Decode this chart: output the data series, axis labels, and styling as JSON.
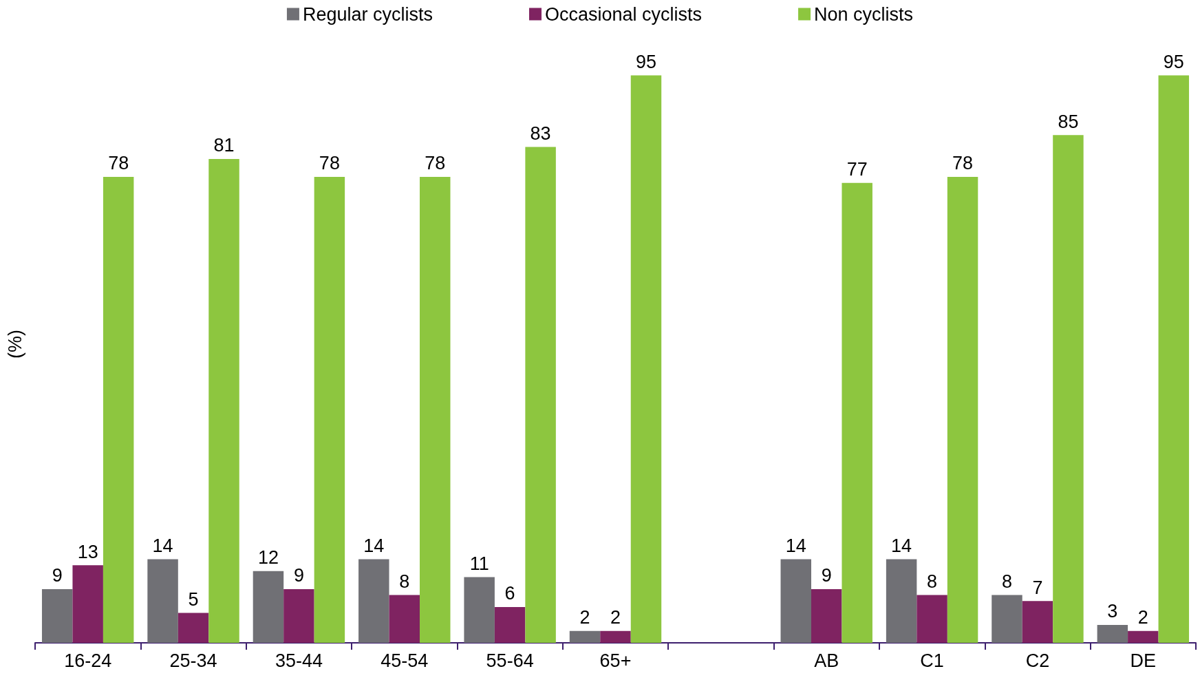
{
  "chart_data": {
    "type": "bar",
    "ylabel": "(%)",
    "categories": [
      "16-24",
      "25-34",
      "35-44",
      "45-54",
      "55-64",
      "65+",
      null,
      "AB",
      "C1",
      "C2",
      "DE"
    ],
    "series": [
      {
        "name": "Regular cyclists",
        "color": "#707075",
        "values": [
          9,
          14,
          12,
          14,
          11,
          2,
          null,
          14,
          14,
          8,
          3
        ]
      },
      {
        "name": "Occasional cyclists",
        "color": "#7f2361",
        "values": [
          13,
          5,
          9,
          8,
          6,
          2,
          null,
          9,
          8,
          7,
          2
        ]
      },
      {
        "name": "Non cyclists",
        "color": "#8dc63f",
        "values": [
          78,
          81,
          78,
          78,
          83,
          95,
          null,
          77,
          78,
          85,
          95
        ]
      }
    ],
    "data_labels": true,
    "legend": "top",
    "grid": false
  }
}
